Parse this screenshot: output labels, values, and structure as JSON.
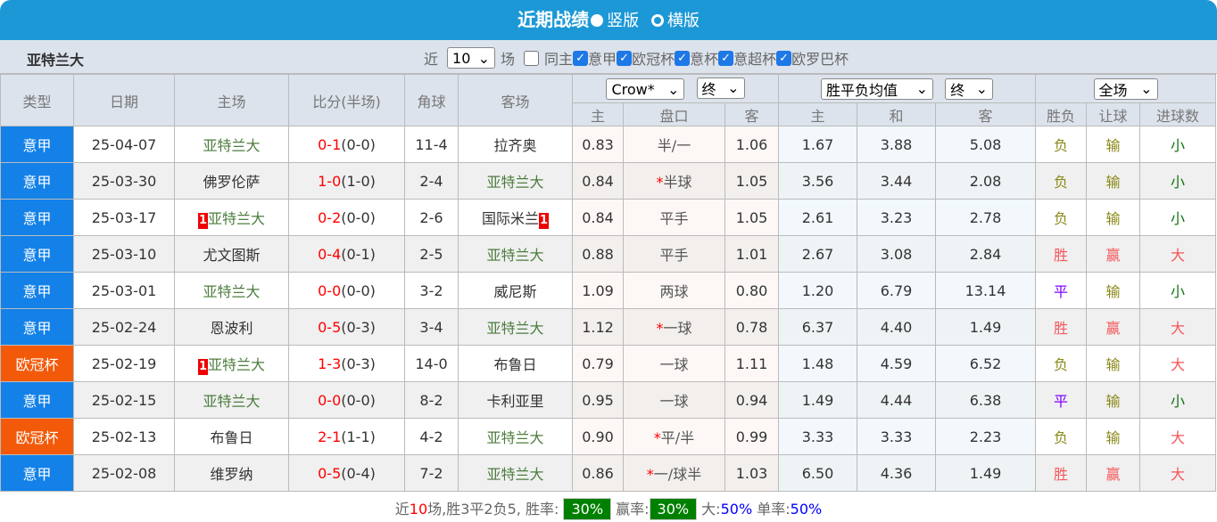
{
  "title": {
    "text": "近期战绩",
    "opt1": "竖版",
    "opt2": "横版",
    "selected": "竖版"
  },
  "filter": {
    "team": "亚特兰大",
    "near": "近",
    "count": "10",
    "unit": "场",
    "same_host": "同主",
    "same_host_checked": false,
    "leagues": [
      {
        "label": "意甲",
        "checked": true
      },
      {
        "label": "欧冠杯",
        "checked": true
      },
      {
        "label": "意杯",
        "checked": true
      },
      {
        "label": "意超杯",
        "checked": true
      },
      {
        "label": "欧罗巴杯",
        "checked": true
      }
    ]
  },
  "header": {
    "type": "类型",
    "date": "日期",
    "home": "主场",
    "score": "比分(半场)",
    "corner": "角球",
    "away": "客场",
    "ah_company": "Crow*",
    "ah_time": "终",
    "eu_type": "胜平负均值",
    "eu_time": "终",
    "period": "全场",
    "ah_home": "主",
    "ah_line": "盘口",
    "ah_away": "客",
    "eu_home": "主",
    "eu_draw": "和",
    "eu_away": "客",
    "result": "胜负",
    "handicap_result": "让球",
    "goals": "进球数"
  },
  "rows": [
    {
      "type": "意甲",
      "ucl": false,
      "date": "25-04-07",
      "home": "亚特兰大",
      "home_rc": "",
      "home_team": true,
      "ft": "0-1",
      "ht": "(0-0)",
      "corner": "11-4",
      "away": "拉齐奥",
      "away_rc": "",
      "away_team": false,
      "ah_h": "0.83",
      "star": "",
      "line": "半/一",
      "ah_a": "1.06",
      "e_h": "1.67",
      "e_d": "3.88",
      "e_a": "5.08",
      "res": "负",
      "hres": "输",
      "ou": "小"
    },
    {
      "type": "意甲",
      "ucl": false,
      "date": "25-03-30",
      "home": "佛罗伦萨",
      "home_rc": "",
      "home_team": false,
      "ft": "1-0",
      "ht": "(1-0)",
      "corner": "2-4",
      "away": "亚特兰大",
      "away_rc": "",
      "away_team": true,
      "ah_h": "0.84",
      "star": "*",
      "line": "半球",
      "ah_a": "1.05",
      "e_h": "3.56",
      "e_d": "3.44",
      "e_a": "2.08",
      "res": "负",
      "hres": "输",
      "ou": "小"
    },
    {
      "type": "意甲",
      "ucl": false,
      "date": "25-03-17",
      "home": "亚特兰大",
      "home_rc": "1",
      "home_team": true,
      "ft": "0-2",
      "ht": "(0-0)",
      "corner": "2-6",
      "away": "国际米兰",
      "away_rc": "1",
      "away_team": false,
      "ah_h": "0.84",
      "star": "",
      "line": "平手",
      "ah_a": "1.05",
      "e_h": "2.61",
      "e_d": "3.23",
      "e_a": "2.78",
      "res": "负",
      "hres": "输",
      "ou": "小"
    },
    {
      "type": "意甲",
      "ucl": false,
      "date": "25-03-10",
      "home": "尤文图斯",
      "home_rc": "",
      "home_team": false,
      "ft": "0-4",
      "ht": "(0-1)",
      "corner": "2-5",
      "away": "亚特兰大",
      "away_rc": "",
      "away_team": true,
      "ah_h": "0.88",
      "star": "",
      "line": "平手",
      "ah_a": "1.01",
      "e_h": "2.67",
      "e_d": "3.08",
      "e_a": "2.84",
      "res": "胜",
      "hres": "赢",
      "ou": "大"
    },
    {
      "type": "意甲",
      "ucl": false,
      "date": "25-03-01",
      "home": "亚特兰大",
      "home_rc": "",
      "home_team": true,
      "ft": "0-0",
      "ht": "(0-0)",
      "corner": "3-2",
      "away": "威尼斯",
      "away_rc": "",
      "away_team": false,
      "ah_h": "1.09",
      "star": "",
      "line": "两球",
      "ah_a": "0.80",
      "e_h": "1.20",
      "e_d": "6.79",
      "e_a": "13.14",
      "res": "平",
      "hres": "输",
      "ou": "小"
    },
    {
      "type": "意甲",
      "ucl": false,
      "date": "25-02-24",
      "home": "恩波利",
      "home_rc": "",
      "home_team": false,
      "ft": "0-5",
      "ht": "(0-3)",
      "corner": "3-4",
      "away": "亚特兰大",
      "away_rc": "",
      "away_team": true,
      "ah_h": "1.12",
      "star": "*",
      "line": "一球",
      "ah_a": "0.78",
      "e_h": "6.37",
      "e_d": "4.40",
      "e_a": "1.49",
      "res": "胜",
      "hres": "赢",
      "ou": "大"
    },
    {
      "type": "欧冠杯",
      "ucl": true,
      "date": "25-02-19",
      "home": "亚特兰大",
      "home_rc": "1",
      "home_team": true,
      "ft": "1-3",
      "ht": "(0-3)",
      "corner": "14-0",
      "away": "布鲁日",
      "away_rc": "",
      "away_team": false,
      "ah_h": "0.79",
      "star": "",
      "line": "一球",
      "ah_a": "1.11",
      "e_h": "1.48",
      "e_d": "4.59",
      "e_a": "6.52",
      "res": "负",
      "hres": "输",
      "ou": "大"
    },
    {
      "type": "意甲",
      "ucl": false,
      "date": "25-02-15",
      "home": "亚特兰大",
      "home_rc": "",
      "home_team": true,
      "ft": "0-0",
      "ht": "(0-0)",
      "corner": "8-2",
      "away": "卡利亚里",
      "away_rc": "",
      "away_team": false,
      "ah_h": "0.95",
      "star": "",
      "line": "一球",
      "ah_a": "0.94",
      "e_h": "1.49",
      "e_d": "4.44",
      "e_a": "6.38",
      "res": "平",
      "hres": "输",
      "ou": "小"
    },
    {
      "type": "欧冠杯",
      "ucl": true,
      "date": "25-02-13",
      "home": "布鲁日",
      "home_rc": "",
      "home_team": false,
      "ft": "2-1",
      "ht": "(1-1)",
      "corner": "4-2",
      "away": "亚特兰大",
      "away_rc": "",
      "away_team": true,
      "ah_h": "0.90",
      "star": "*",
      "line": "平/半",
      "ah_a": "0.99",
      "e_h": "3.33",
      "e_d": "3.33",
      "e_a": "2.23",
      "res": "负",
      "hres": "输",
      "ou": "大"
    },
    {
      "type": "意甲",
      "ucl": false,
      "date": "25-02-08",
      "home": "维罗纳",
      "home_rc": "",
      "home_team": false,
      "ft": "0-5",
      "ht": "(0-4)",
      "corner": "7-2",
      "away": "亚特兰大",
      "away_rc": "",
      "away_team": true,
      "ah_h": "0.86",
      "star": "*",
      "line": "一/球半",
      "ah_a": "1.03",
      "e_h": "6.50",
      "e_d": "4.36",
      "e_a": "1.49",
      "res": "胜",
      "hres": "赢",
      "ou": "大"
    }
  ],
  "footer": {
    "pre": "近",
    "n": "10",
    "mid": "场,胜3平2负5, 胜率:",
    "win_rate": "30%",
    "ying_label": "赢率:",
    "ying_rate": "30%",
    "big_label": "大:",
    "big_rate": "50%",
    "odd_label": "单率:",
    "odd_rate": "50%"
  }
}
